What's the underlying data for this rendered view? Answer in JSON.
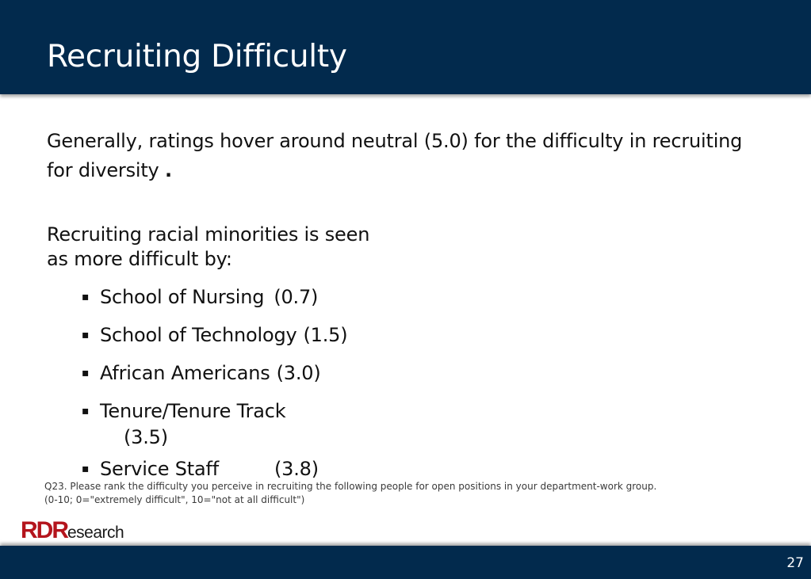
{
  "slide": {
    "title": "Recruiting Difficulty",
    "intro_text": "Generally, ratings hover around neutral (5.0) for the difficulty in recruiting for diversity",
    "intro_punct": ".",
    "lead_line1": "Recruiting racial minorities is seen",
    "lead_line2": "as more difficult by:",
    "bullets": [
      {
        "label": "School of Nursing",
        "value": "(0.7)"
      },
      {
        "label": "School of Technology",
        "value": "(1.5)"
      },
      {
        "label": "African Americans",
        "value": "(3.0)"
      },
      {
        "label": "Tenure/Tenure Track",
        "value": "(3.5)"
      },
      {
        "label": "Service Staff",
        "value": "(3.8)"
      }
    ],
    "bullet_marker": "▪",
    "footnote_line1": "Q23.  Please rank the difficulty you perceive in recruiting the following people for open positions in your department-work group.",
    "footnote_line2": "(0-10; 0=\"extremely difficult\", 10=\"not at all difficult\")",
    "page_number": "27"
  },
  "logo": {
    "text": "RDResearch"
  },
  "colors": {
    "header_bg": "#022a4d",
    "logo_red": "#b4151d"
  }
}
